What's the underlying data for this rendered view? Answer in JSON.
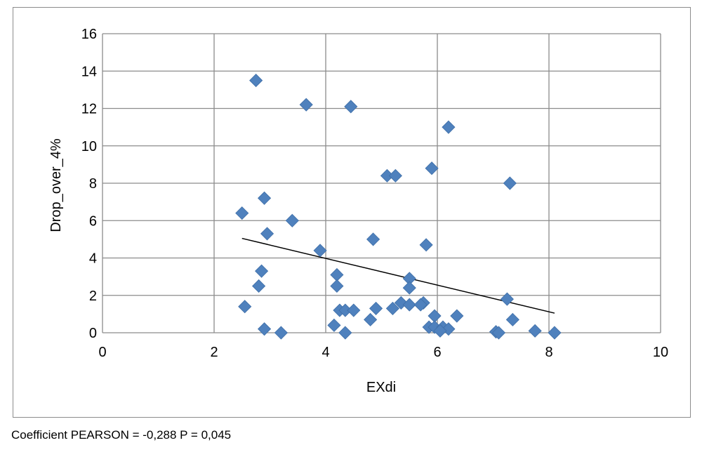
{
  "chart_data": {
    "type": "scatter",
    "xlabel": "EXdi",
    "ylabel": "Drop_over_4%",
    "xlim": [
      0,
      10
    ],
    "ylim": [
      0,
      16
    ],
    "xticks": [
      0,
      2,
      4,
      6,
      8,
      10
    ],
    "yticks": [
      0,
      2,
      4,
      6,
      8,
      10,
      12,
      14,
      16
    ],
    "grid": true,
    "marker_color": "#4F81BD",
    "trendline": {
      "x": [
        2.5,
        8.1
      ],
      "y": [
        5.05,
        1.05
      ],
      "color": "#000000"
    },
    "series": [
      {
        "points": [
          [
            2.75,
            13.5
          ],
          [
            3.65,
            12.2
          ],
          [
            4.45,
            12.1
          ],
          [
            6.2,
            11.0
          ],
          [
            5.9,
            8.8
          ],
          [
            5.1,
            8.4
          ],
          [
            5.25,
            8.4
          ],
          [
            7.3,
            8.0
          ],
          [
            2.9,
            7.2
          ],
          [
            2.5,
            6.4
          ],
          [
            3.4,
            6.0
          ],
          [
            2.95,
            5.3
          ],
          [
            4.85,
            5.0
          ],
          [
            5.8,
            4.7
          ],
          [
            3.9,
            4.4
          ],
          [
            2.85,
            3.3
          ],
          [
            4.2,
            3.1
          ],
          [
            5.5,
            2.9
          ],
          [
            2.8,
            2.5
          ],
          [
            4.2,
            2.5
          ],
          [
            5.5,
            2.4
          ],
          [
            7.25,
            1.8
          ],
          [
            5.35,
            1.6
          ],
          [
            5.75,
            1.6
          ],
          [
            5.2,
            1.3
          ],
          [
            4.9,
            1.3
          ],
          [
            5.5,
            1.5
          ],
          [
            5.7,
            1.5
          ],
          [
            2.55,
            1.4
          ],
          [
            4.25,
            1.2
          ],
          [
            4.35,
            1.2
          ],
          [
            4.5,
            1.2
          ],
          [
            5.95,
            0.9
          ],
          [
            6.35,
            0.9
          ],
          [
            4.8,
            0.7
          ],
          [
            7.35,
            0.7
          ],
          [
            4.15,
            0.4
          ],
          [
            5.85,
            0.3
          ],
          [
            5.95,
            0.3
          ],
          [
            6.1,
            0.3
          ],
          [
            6.2,
            0.2
          ],
          [
            2.9,
            0.2
          ],
          [
            6.05,
            0.1
          ],
          [
            7.05,
            0.05
          ],
          [
            7.1,
            0.0
          ],
          [
            7.75,
            0.1
          ],
          [
            3.2,
            0.0
          ],
          [
            4.35,
            0.0
          ],
          [
            8.1,
            0.0
          ]
        ]
      }
    ]
  },
  "caption": "Coefficient PEARSON = -0,288 P = 0,045"
}
